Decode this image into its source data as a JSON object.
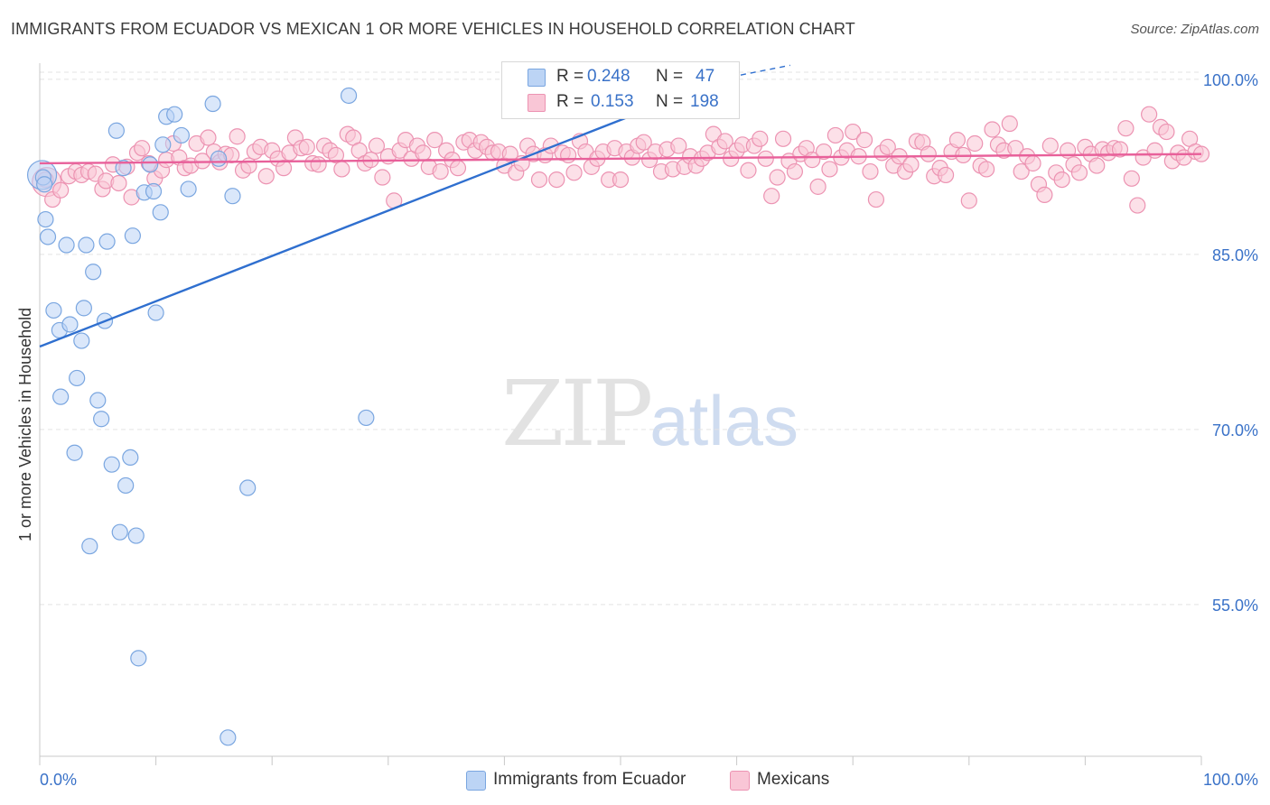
{
  "title": "IMMIGRANTS FROM ECUADOR VS MEXICAN 1 OR MORE VEHICLES IN HOUSEHOLD CORRELATION CHART",
  "source": "Source: ZipAtlas.com",
  "watermark": {
    "zip": "ZIP",
    "atlas": "atlas"
  },
  "legend_top": {
    "rows": [
      {
        "r_label": "R =",
        "r_value": "0.248",
        "n_label": "N =",
        "n_value": "47"
      },
      {
        "r_label": "R =",
        "r_value": "0.153",
        "n_label": "N =",
        "n_value": "198"
      }
    ]
  },
  "legend_bottom": {
    "items": [
      "Immigrants from Ecuador",
      "Mexicans"
    ]
  },
  "colors": {
    "ecuador_fill": "#bcd4f5",
    "ecuador_stroke": "#7aa6e0",
    "ecuador_line": "#2f6fcf",
    "mexican_fill": "#f9c6d6",
    "mexican_stroke": "#ec93b2",
    "mexican_line": "#e8609a",
    "tick_label": "#3a72c8",
    "grid": "#e3e3e3"
  },
  "chart_data": {
    "type": "scatter",
    "title": "IMMIGRANTS FROM ECUADOR VS MEXICAN 1 OR MORE VEHICLES IN HOUSEHOLD CORRELATION CHART",
    "xlabel": "",
    "ylabel": "1 or more Vehicles in Household",
    "xlim": [
      0,
      100
    ],
    "ylim": [
      42,
      102
    ],
    "x_tick_labels": [
      "0.0%",
      "100.0%"
    ],
    "y_ticks": [
      100,
      85,
      70,
      55
    ],
    "y_tick_labels": [
      "100.0%",
      "85.0%",
      "70.0%",
      "55.0%"
    ],
    "grid": true,
    "legend_placement": "bottom",
    "series": [
      {
        "name": "Immigrants from Ecuador",
        "points": [
          [
            0.3,
            91.6
          ],
          [
            0.4,
            91.0
          ],
          [
            0.5,
            88.0
          ],
          [
            0.7,
            86.5
          ],
          [
            1.2,
            80.2
          ],
          [
            1.7,
            78.5
          ],
          [
            1.8,
            72.8
          ],
          [
            2.3,
            85.8
          ],
          [
            2.6,
            79.0
          ],
          [
            3.0,
            68.0
          ],
          [
            3.2,
            74.4
          ],
          [
            3.6,
            77.6
          ],
          [
            3.8,
            80.4
          ],
          [
            4.0,
            85.8
          ],
          [
            4.3,
            60.0
          ],
          [
            4.6,
            83.5
          ],
          [
            5.0,
            72.5
          ],
          [
            5.3,
            70.9
          ],
          [
            5.6,
            79.3
          ],
          [
            5.8,
            86.1
          ],
          [
            6.2,
            67.0
          ],
          [
            6.6,
            95.6
          ],
          [
            6.9,
            61.2
          ],
          [
            7.2,
            92.4
          ],
          [
            7.4,
            65.2
          ],
          [
            7.8,
            67.6
          ],
          [
            8.0,
            86.6
          ],
          [
            8.3,
            60.9
          ],
          [
            8.5,
            50.4
          ],
          [
            9.0,
            90.3
          ],
          [
            9.5,
            92.7
          ],
          [
            9.8,
            90.4
          ],
          [
            10.0,
            80.0
          ],
          [
            10.4,
            88.6
          ],
          [
            10.6,
            94.4
          ],
          [
            10.9,
            96.8
          ],
          [
            11.6,
            97.0
          ],
          [
            12.2,
            95.2
          ],
          [
            12.8,
            90.6
          ],
          [
            14.9,
            97.9
          ],
          [
            15.4,
            93.2
          ],
          [
            16.2,
            43.6
          ],
          [
            16.6,
            90.0
          ],
          [
            17.9,
            65.0
          ],
          [
            26.6,
            98.6
          ],
          [
            28.1,
            71.0
          ],
          [
            59.5,
            100.2
          ]
        ],
        "big_points": [
          [
            0.2,
            91.8
          ]
        ],
        "trend": {
          "x": [
            0,
            59.5
          ],
          "y": [
            77.1,
            100.2
          ],
          "dashed_to": [
            64.6,
            101.2
          ]
        }
      },
      {
        "name": "Mexicans",
        "points": [
          [
            0.5,
            91.4
          ],
          [
            1.1,
            89.7
          ],
          [
            1.8,
            90.5
          ],
          [
            2.5,
            91.7
          ],
          [
            3.1,
            92.1
          ],
          [
            3.6,
            91.8
          ],
          [
            4.2,
            92.1
          ],
          [
            4.8,
            91.9
          ],
          [
            5.4,
            90.6
          ],
          [
            5.7,
            91.3
          ],
          [
            6.3,
            92.7
          ],
          [
            6.8,
            91.1
          ],
          [
            7.5,
            92.5
          ],
          [
            7.9,
            89.9
          ],
          [
            8.4,
            93.7
          ],
          [
            8.8,
            94.1
          ],
          [
            9.4,
            92.8
          ],
          [
            9.9,
            91.5
          ],
          [
            10.5,
            92.2
          ],
          [
            10.9,
            93.1
          ],
          [
            11.5,
            94.5
          ],
          [
            12.0,
            93.3
          ],
          [
            12.5,
            92.4
          ],
          [
            13.0,
            92.6
          ],
          [
            13.5,
            94.5
          ],
          [
            14.0,
            93.0
          ],
          [
            14.5,
            95.0
          ],
          [
            15.0,
            93.8
          ],
          [
            15.5,
            92.9
          ],
          [
            16.0,
            93.6
          ],
          [
            16.5,
            93.5
          ],
          [
            17.0,
            95.1
          ],
          [
            17.5,
            92.2
          ],
          [
            18.0,
            92.6
          ],
          [
            18.5,
            93.8
          ],
          [
            19.0,
            94.2
          ],
          [
            19.5,
            91.7
          ],
          [
            20.0,
            93.9
          ],
          [
            20.5,
            93.2
          ],
          [
            21.0,
            92.4
          ],
          [
            21.5,
            93.7
          ],
          [
            22.0,
            95.0
          ],
          [
            22.5,
            94.1
          ],
          [
            23.0,
            94.2
          ],
          [
            23.5,
            92.8
          ],
          [
            24.0,
            92.7
          ],
          [
            24.5,
            94.3
          ],
          [
            25.0,
            93.9
          ],
          [
            25.5,
            93.5
          ],
          [
            26.0,
            92.3
          ],
          [
            26.5,
            95.3
          ],
          [
            27.0,
            95.0
          ],
          [
            27.5,
            93.9
          ],
          [
            28.0,
            92.8
          ],
          [
            28.5,
            93.1
          ],
          [
            29.0,
            94.3
          ],
          [
            29.5,
            91.6
          ],
          [
            30.0,
            93.4
          ],
          [
            30.5,
            89.6
          ],
          [
            31.0,
            93.9
          ],
          [
            31.5,
            94.8
          ],
          [
            32.0,
            93.2
          ],
          [
            32.5,
            94.3
          ],
          [
            33.0,
            93.7
          ],
          [
            33.5,
            92.5
          ],
          [
            34.0,
            94.8
          ],
          [
            34.5,
            92.1
          ],
          [
            35.0,
            93.9
          ],
          [
            35.5,
            93.1
          ],
          [
            36.0,
            92.4
          ],
          [
            36.5,
            94.6
          ],
          [
            37.0,
            94.8
          ],
          [
            37.5,
            93.9
          ],
          [
            38.0,
            94.6
          ],
          [
            38.5,
            94.2
          ],
          [
            39.0,
            93.7
          ],
          [
            39.5,
            93.8
          ],
          [
            40.0,
            92.6
          ],
          [
            40.5,
            93.6
          ],
          [
            41.0,
            92.0
          ],
          [
            41.5,
            92.8
          ],
          [
            42.0,
            94.3
          ],
          [
            42.5,
            93.6
          ],
          [
            43.0,
            91.4
          ],
          [
            43.5,
            93.5
          ],
          [
            44.0,
            94.3
          ],
          [
            44.5,
            91.4
          ],
          [
            45.0,
            93.7
          ],
          [
            45.5,
            93.5
          ],
          [
            46.0,
            92.0
          ],
          [
            46.5,
            94.7
          ],
          [
            47.0,
            93.8
          ],
          [
            47.5,
            92.5
          ],
          [
            48.0,
            93.2
          ],
          [
            48.5,
            93.8
          ],
          [
            49.0,
            91.4
          ],
          [
            49.5,
            94.1
          ],
          [
            50.0,
            91.4
          ],
          [
            50.5,
            93.8
          ],
          [
            51.0,
            93.3
          ],
          [
            51.5,
            94.3
          ],
          [
            52.0,
            94.6
          ],
          [
            52.5,
            93.1
          ],
          [
            53.0,
            93.8
          ],
          [
            53.5,
            92.1
          ],
          [
            54.0,
            94.0
          ],
          [
            54.5,
            92.3
          ],
          [
            55.0,
            94.3
          ],
          [
            55.5,
            92.5
          ],
          [
            56.0,
            93.4
          ],
          [
            56.5,
            92.6
          ],
          [
            57.0,
            93.2
          ],
          [
            57.5,
            93.7
          ],
          [
            58.0,
            95.3
          ],
          [
            58.5,
            94.2
          ],
          [
            59.0,
            94.7
          ],
          [
            59.5,
            93.2
          ],
          [
            60.0,
            93.9
          ],
          [
            60.5,
            94.4
          ],
          [
            61.0,
            92.2
          ],
          [
            61.5,
            94.3
          ],
          [
            62.0,
            94.9
          ],
          [
            62.5,
            93.2
          ],
          [
            63.0,
            90.0
          ],
          [
            63.5,
            91.6
          ],
          [
            64.0,
            94.9
          ],
          [
            64.5,
            93.0
          ],
          [
            65.0,
            92.1
          ],
          [
            65.5,
            93.6
          ],
          [
            66.0,
            94.1
          ],
          [
            66.5,
            93.1
          ],
          [
            67.0,
            90.8
          ],
          [
            67.5,
            93.8
          ],
          [
            68.0,
            92.3
          ],
          [
            68.5,
            95.2
          ],
          [
            69.0,
            93.3
          ],
          [
            69.5,
            93.9
          ],
          [
            70.0,
            95.5
          ],
          [
            70.5,
            93.4
          ],
          [
            71.0,
            94.8
          ],
          [
            71.5,
            92.1
          ],
          [
            72.0,
            89.7
          ],
          [
            72.5,
            93.7
          ],
          [
            73.0,
            94.2
          ],
          [
            73.5,
            92.6
          ],
          [
            74.0,
            93.4
          ],
          [
            74.5,
            92.1
          ],
          [
            75.0,
            92.7
          ],
          [
            75.5,
            94.7
          ],
          [
            76.0,
            94.6
          ],
          [
            76.5,
            93.6
          ],
          [
            77.0,
            91.7
          ],
          [
            77.5,
            92.4
          ],
          [
            78.0,
            91.8
          ],
          [
            78.5,
            93.8
          ],
          [
            79.0,
            94.8
          ],
          [
            79.5,
            93.5
          ],
          [
            80.0,
            89.6
          ],
          [
            80.5,
            94.5
          ],
          [
            81.0,
            92.6
          ],
          [
            81.5,
            92.3
          ],
          [
            82.0,
            95.7
          ],
          [
            82.5,
            94.4
          ],
          [
            83.0,
            93.9
          ],
          [
            83.5,
            96.2
          ],
          [
            84.0,
            94.1
          ],
          [
            84.5,
            92.1
          ],
          [
            85.0,
            93.4
          ],
          [
            85.5,
            92.8
          ],
          [
            86.0,
            91.0
          ],
          [
            86.5,
            90.1
          ],
          [
            87.0,
            94.3
          ],
          [
            87.5,
            92.0
          ],
          [
            88.0,
            91.4
          ],
          [
            88.5,
            93.9
          ],
          [
            89.0,
            92.7
          ],
          [
            89.5,
            92.0
          ],
          [
            90.0,
            94.2
          ],
          [
            90.5,
            93.6
          ],
          [
            91.0,
            92.6
          ],
          [
            91.5,
            94.0
          ],
          [
            92.0,
            93.7
          ],
          [
            92.5,
            94.1
          ],
          [
            93.0,
            94.0
          ],
          [
            93.5,
            95.8
          ],
          [
            94.0,
            91.5
          ],
          [
            94.5,
            89.2
          ],
          [
            95.0,
            93.3
          ],
          [
            95.5,
            97.0
          ],
          [
            96.0,
            93.9
          ],
          [
            96.5,
            95.9
          ],
          [
            97.0,
            95.5
          ],
          [
            97.5,
            93.0
          ],
          [
            98.0,
            93.7
          ],
          [
            98.5,
            93.3
          ],
          [
            99.0,
            94.9
          ],
          [
            99.5,
            93.8
          ],
          [
            100.0,
            93.6
          ]
        ],
        "big_points": [
          [
            0.6,
            91.2
          ]
        ],
        "trend": {
          "x": [
            0,
            100
          ],
          "y": [
            92.8,
            93.6
          ]
        }
      }
    ]
  }
}
